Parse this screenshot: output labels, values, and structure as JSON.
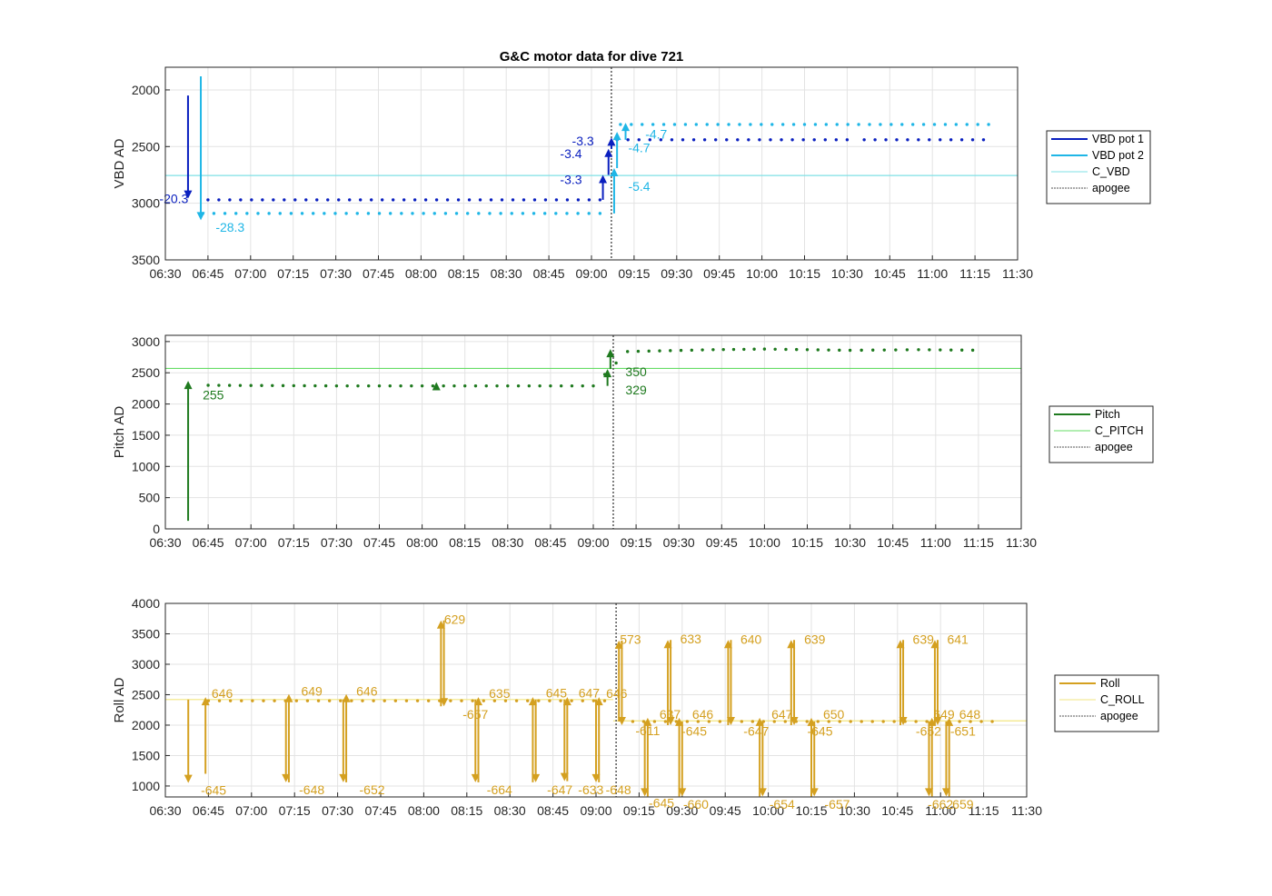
{
  "title": "G&C motor data for dive 721",
  "x_ticks": [
    "06:30",
    "06:45",
    "07:00",
    "07:15",
    "07:30",
    "07:45",
    "08:00",
    "08:15",
    "08:30",
    "08:45",
    "09:00",
    "09:15",
    "09:30",
    "09:45",
    "10:00",
    "10:15",
    "10:30",
    "10:45",
    "11:00",
    "11:15",
    "11:30"
  ],
  "chart_data": [
    {
      "type": "line",
      "ylabel": "VBD AD",
      "ylim": [
        1800,
        3500
      ],
      "y_reversed": true,
      "y_ticks": [
        2000,
        2500,
        3000,
        3500
      ],
      "grid": true,
      "legend": {
        "placement": "right",
        "entries": [
          {
            "label": "VBD pot 1",
            "color": "#0a1fbf",
            "style": "thick"
          },
          {
            "label": "VBD pot 2",
            "color": "#1fb6e6",
            "style": "thick"
          },
          {
            "label": "C_VBD",
            "color": "#7fe0e6",
            "style": "thin"
          },
          {
            "label": "apogee",
            "color": "#555555",
            "style": "dotted"
          }
        ]
      },
      "hlines": [
        {
          "y": 2755,
          "color": "#7fe0e6"
        }
      ],
      "vlines": [
        {
          "x": 9.1167,
          "color": "#555555"
        }
      ],
      "series": [
        {
          "name": "VBD pot 1",
          "color": "#0a1fbf",
          "segments": [
            [
              6.75,
              9.05,
              2970
            ],
            [
              9.15,
              10.5,
              2440
            ],
            [
              10.6,
              11.3,
              2440
            ]
          ]
        },
        {
          "name": "VBD pot 2",
          "color": "#1fb6e6",
          "segments": [
            [
              6.72,
              9.05,
              3090
            ],
            [
              9.17,
              11.33,
              2305
            ]
          ]
        }
      ],
      "arrows": [
        {
          "x": 6.633,
          "y1": 2050,
          "y2": 2960,
          "color": "#0a1fbf",
          "label": "-20.3",
          "lx": 6.55,
          "ly": 2960,
          "anchor": "middle"
        },
        {
          "x": 6.708,
          "y1": 1880,
          "y2": 3150,
          "color": "#1fb6e6",
          "label": "-28.3",
          "lx": 6.88,
          "ly": 3210,
          "anchor": "middle"
        },
        {
          "x": 9.067,
          "y1": 2970,
          "y2": 2750,
          "color": "#0a1fbf",
          "label": "-3.3",
          "lx": 8.88,
          "ly": 2790,
          "anchor": "middle"
        },
        {
          "x": 9.1,
          "y1": 2750,
          "y2": 2520,
          "color": "#0a1fbf",
          "label": "-3.4",
          "lx": 8.88,
          "ly": 2560,
          "anchor": "middle"
        },
        {
          "x": 9.117,
          "y1": 2520,
          "y2": 2420,
          "color": "#0a1fbf",
          "label": "-3.3",
          "lx": 8.95,
          "ly": 2450,
          "anchor": "middle"
        },
        {
          "x": 9.133,
          "y1": 3090,
          "y2": 2690,
          "color": "#1fb6e6",
          "label": "-5.4",
          "lx": 9.28,
          "ly": 2850,
          "anchor": "middle"
        },
        {
          "x": 9.15,
          "y1": 2690,
          "y2": 2370,
          "color": "#1fb6e6",
          "label": "-4.7",
          "lx": 9.28,
          "ly": 2510,
          "anchor": "middle"
        },
        {
          "x": 9.2,
          "y1": 2440,
          "y2": 2290,
          "color": "#1fb6e6",
          "label": "-4.7",
          "lx": 9.38,
          "ly": 2390,
          "anchor": "middle"
        }
      ]
    },
    {
      "type": "line",
      "ylabel": "Pitch AD",
      "ylim": [
        0,
        3100
      ],
      "y_reversed": false,
      "y_ticks": [
        0,
        500,
        1000,
        1500,
        2000,
        2500,
        3000
      ],
      "grid": true,
      "legend": {
        "placement": "right",
        "entries": [
          {
            "label": "Pitch",
            "color": "#1f7a1f",
            "style": "thick"
          },
          {
            "label": "C_PITCH",
            "color": "#66dd66",
            "style": "thin"
          },
          {
            "label": "apogee",
            "color": "#555555",
            "style": "dotted"
          }
        ]
      },
      "hlines": [
        {
          "y": 2570,
          "color": "#66dd66"
        }
      ],
      "vlines": [
        {
          "x": 9.1167,
          "color": "#555555"
        }
      ],
      "series": [
        {
          "name": "Pitch",
          "color": "#1f7a1f",
          "points": [
            [
              6.75,
              2300
            ],
            [
              7.5,
              2290
            ],
            [
              8.0,
              2290
            ],
            [
              8.5,
              2290
            ],
            [
              9.0,
              2290
            ],
            [
              9.2,
              2840
            ],
            [
              9.7,
              2870
            ],
            [
              10.0,
              2880
            ],
            [
              10.5,
              2860
            ],
            [
              10.9,
              2870
            ],
            [
              11.28,
              2860
            ]
          ]
        }
      ],
      "arrows": [
        {
          "x": 6.633,
          "y1": 130,
          "y2": 2370,
          "color": "#1f7a1f",
          "label": "255",
          "lx": 6.78,
          "ly": 2150,
          "anchor": "middle"
        },
        {
          "x": 8.083,
          "y1": 2290,
          "y2": 2350,
          "color": "#1f7a1f",
          "label": "",
          "lx": 0,
          "ly": 0,
          "anchor": "middle"
        },
        {
          "x": 9.083,
          "y1": 2290,
          "y2": 2560,
          "color": "#1f7a1f",
          "label": "329",
          "lx": 9.25,
          "ly": 2230,
          "anchor": "middle"
        },
        {
          "x": 9.1,
          "y1": 2560,
          "y2": 2880,
          "color": "#1f7a1f",
          "label": "350",
          "lx": 9.25,
          "ly": 2520,
          "anchor": "middle"
        }
      ]
    },
    {
      "type": "line",
      "ylabel": "Roll AD",
      "ylim": [
        820,
        4000
      ],
      "y_reversed": false,
      "y_ticks": [
        1000,
        1500,
        2000,
        2500,
        3000,
        3500,
        4000
      ],
      "grid": true,
      "legend": {
        "placement": "right",
        "entries": [
          {
            "label": "Roll",
            "color": "#d4a020",
            "style": "thick"
          },
          {
            "label": "C_ROLL",
            "color": "#f2e680",
            "style": "thin"
          },
          {
            "label": "apogee",
            "color": "#555555",
            "style": "dotted"
          }
        ]
      },
      "hlines": [
        {
          "y": 2420,
          "color": "#f2e680",
          "x1": 6.5,
          "x2": 9.1
        },
        {
          "y": 2070,
          "color": "#f2e680",
          "x1": 9.1,
          "x2": 11.5
        }
      ],
      "vlines": [
        {
          "x": 9.1167,
          "color": "#555555"
        }
      ],
      "series": [
        {
          "name": "Roll",
          "color": "#d4a020",
          "segments": [
            [
              6.75,
              9.05,
              2400
            ],
            [
              9.15,
              11.3,
              2060
            ]
          ]
        }
      ],
      "arrows": [
        {
          "x": 6.633,
          "y1": 2420,
          "y2": 1050,
          "color": "#d4a020",
          "label": "-645",
          "lx": 6.78,
          "ly": 930,
          "anchor": "middle"
        },
        {
          "x": 6.733,
          "y1": 1200,
          "y2": 2460,
          "color": "#d4a020",
          "label": "646",
          "lx": 6.83,
          "ly": 2520,
          "anchor": "middle"
        },
        {
          "x": 7.2,
          "y1": 2420,
          "y2": 1060,
          "color": "#d4a020",
          "label": "-648",
          "lx": 7.35,
          "ly": 940,
          "anchor": "middle"
        },
        {
          "x": 7.217,
          "y1": 1060,
          "y2": 2510,
          "color": "#d4a020",
          "label": "649",
          "lx": 7.35,
          "ly": 2560,
          "anchor": "middle"
        },
        {
          "x": 7.533,
          "y1": 2420,
          "y2": 1060,
          "color": "#d4a020",
          "label": "-652",
          "lx": 7.7,
          "ly": 940,
          "anchor": "middle"
        },
        {
          "x": 7.55,
          "y1": 1060,
          "y2": 2510,
          "color": "#d4a020",
          "label": "646",
          "lx": 7.67,
          "ly": 2560,
          "anchor": "middle"
        },
        {
          "x": 8.1,
          "y1": 2310,
          "y2": 3720,
          "color": "#d4a020",
          "label": "629",
          "lx": 8.18,
          "ly": 3740,
          "anchor": "middle"
        },
        {
          "x": 8.117,
          "y1": 3720,
          "y2": 2310,
          "color": "#d4a020",
          "label": "-657",
          "lx": 8.3,
          "ly": 2180,
          "anchor": "middle"
        },
        {
          "x": 8.3,
          "y1": 2420,
          "y2": 1060,
          "color": "#d4a020",
          "label": "-664",
          "lx": 8.44,
          "ly": 940,
          "anchor": "middle"
        },
        {
          "x": 8.317,
          "y1": 1060,
          "y2": 2460,
          "color": "#d4a020",
          "label": "635",
          "lx": 8.44,
          "ly": 2520,
          "anchor": "middle"
        },
        {
          "x": 8.633,
          "y1": 1060,
          "y2": 2460,
          "color": "#d4a020",
          "label": "645",
          "lx": 8.77,
          "ly": 2530,
          "anchor": "middle"
        },
        {
          "x": 8.65,
          "y1": 2420,
          "y2": 1060,
          "color": "#d4a020",
          "label": "-647",
          "lx": 8.79,
          "ly": 940,
          "anchor": "middle"
        },
        {
          "x": 8.817,
          "y1": 2420,
          "y2": 1080,
          "color": "#d4a020",
          "label": "-633",
          "lx": 8.97,
          "ly": 940,
          "anchor": "middle"
        },
        {
          "x": 8.833,
          "y1": 1080,
          "y2": 2460,
          "color": "#d4a020",
          "label": "647",
          "lx": 8.96,
          "ly": 2530,
          "anchor": "middle"
        },
        {
          "x": 9.0,
          "y1": 2420,
          "y2": 1060,
          "color": "#d4a020",
          "label": "-648",
          "lx": 9.13,
          "ly": 940,
          "anchor": "middle"
        },
        {
          "x": 9.017,
          "y1": 1060,
          "y2": 2460,
          "color": "#d4a020",
          "label": "646",
          "lx": 9.12,
          "ly": 2520,
          "anchor": "middle"
        },
        {
          "x": 9.133,
          "y1": 2060,
          "y2": 3390,
          "color": "#d4a020",
          "label": "573",
          "lx": 9.2,
          "ly": 3410,
          "anchor": "middle"
        },
        {
          "x": 9.15,
          "y1": 3390,
          "y2": 2000,
          "color": "#d4a020",
          "label": "-611",
          "lx": 9.3,
          "ly": 1910,
          "anchor": "middle"
        },
        {
          "x": 9.283,
          "y1": 2060,
          "y2": 830,
          "color": "#d4a020",
          "label": "-645",
          "lx": 9.38,
          "ly": 720,
          "anchor": "middle"
        },
        {
          "x": 9.3,
          "y1": 830,
          "y2": 2120,
          "color": "#d4a020",
          "label": "637",
          "lx": 9.43,
          "ly": 2180,
          "anchor": "middle"
        },
        {
          "x": 9.417,
          "y1": 2000,
          "y2": 3400,
          "color": "#d4a020",
          "label": "633",
          "lx": 9.55,
          "ly": 3420,
          "anchor": "middle"
        },
        {
          "x": 9.433,
          "y1": 3400,
          "y2": 2000,
          "color": "#d4a020",
          "label": "-645",
          "lx": 9.57,
          "ly": 1900,
          "anchor": "middle"
        },
        {
          "x": 9.483,
          "y1": 830,
          "y2": 2120,
          "color": "#d4a020",
          "label": "646",
          "lx": 9.62,
          "ly": 2180,
          "anchor": "middle"
        },
        {
          "x": 9.5,
          "y1": 2060,
          "y2": 830,
          "color": "#d4a020",
          "label": "-660",
          "lx": 9.58,
          "ly": 700,
          "anchor": "middle"
        },
        {
          "x": 9.767,
          "y1": 2000,
          "y2": 3400,
          "color": "#d4a020",
          "label": "640",
          "lx": 9.9,
          "ly": 3410,
          "anchor": "middle"
        },
        {
          "x": 9.783,
          "y1": 3400,
          "y2": 2000,
          "color": "#d4a020",
          "label": "-647",
          "lx": 9.93,
          "ly": 1900,
          "anchor": "middle"
        },
        {
          "x": 9.95,
          "y1": 830,
          "y2": 2120,
          "color": "#d4a020",
          "label": "647",
          "lx": 10.08,
          "ly": 2180,
          "anchor": "middle"
        },
        {
          "x": 9.967,
          "y1": 2060,
          "y2": 830,
          "color": "#d4a020",
          "label": "-654",
          "lx": 10.08,
          "ly": 700,
          "anchor": "middle"
        },
        {
          "x": 10.133,
          "y1": 2000,
          "y2": 3400,
          "color": "#d4a020",
          "label": "639",
          "lx": 10.27,
          "ly": 3410,
          "anchor": "middle"
        },
        {
          "x": 10.15,
          "y1": 3400,
          "y2": 2000,
          "color": "#d4a020",
          "label": "-645",
          "lx": 10.3,
          "ly": 1900,
          "anchor": "middle"
        },
        {
          "x": 10.25,
          "y1": 830,
          "y2": 2120,
          "color": "#d4a020",
          "label": "650",
          "lx": 10.38,
          "ly": 2180,
          "anchor": "middle"
        },
        {
          "x": 10.267,
          "y1": 2060,
          "y2": 830,
          "color": "#d4a020",
          "label": "-657",
          "lx": 10.4,
          "ly": 700,
          "anchor": "middle"
        },
        {
          "x": 10.767,
          "y1": 2000,
          "y2": 3400,
          "color": "#d4a020",
          "label": "639",
          "lx": 10.9,
          "ly": 3410,
          "anchor": "middle"
        },
        {
          "x": 10.783,
          "y1": 3400,
          "y2": 2000,
          "color": "#d4a020",
          "label": "-652",
          "lx": 10.93,
          "ly": 1900,
          "anchor": "middle"
        },
        {
          "x": 10.933,
          "y1": 2060,
          "y2": 830,
          "color": "#d4a020",
          "label": "-662",
          "lx": 11.0,
          "ly": 700,
          "anchor": "middle"
        },
        {
          "x": 10.95,
          "y1": 830,
          "y2": 2120,
          "color": "#d4a020",
          "label": "649",
          "lx": 11.02,
          "ly": 2180,
          "anchor": "middle"
        },
        {
          "x": 10.967,
          "y1": 2000,
          "y2": 3400,
          "color": "#d4a020",
          "label": "641",
          "lx": 11.1,
          "ly": 3410,
          "anchor": "middle"
        },
        {
          "x": 10.983,
          "y1": 3400,
          "y2": 2000,
          "color": "#d4a020",
          "label": "-651",
          "lx": 11.13,
          "ly": 1900,
          "anchor": "middle"
        },
        {
          "x": 11.033,
          "y1": 2060,
          "y2": 830,
          "color": "#d4a020",
          "label": "659",
          "lx": 11.13,
          "ly": 700,
          "anchor": "middle"
        },
        {
          "x": 11.05,
          "y1": 830,
          "y2": 2120,
          "color": "#d4a020",
          "label": "648",
          "lx": 11.17,
          "ly": 2180,
          "anchor": "middle"
        }
      ]
    }
  ]
}
